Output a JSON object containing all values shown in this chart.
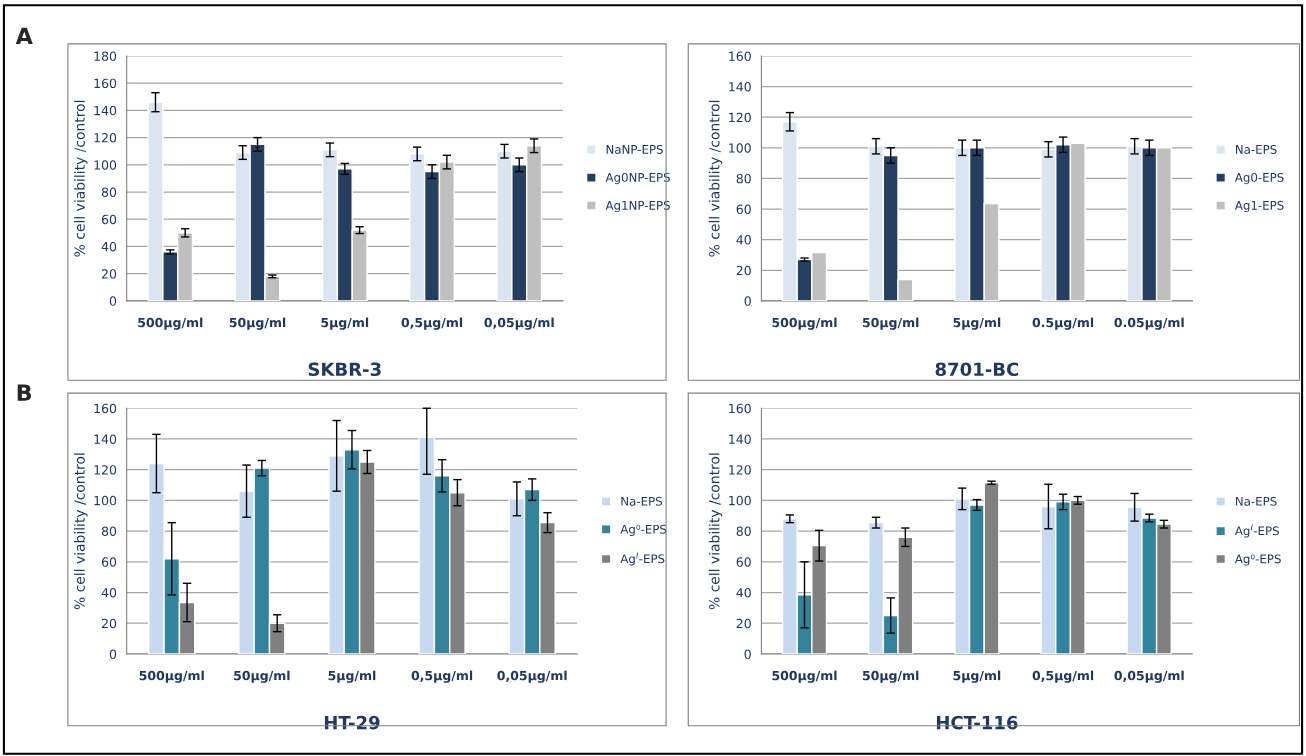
{
  "chart_data": [
    {
      "type": "bar",
      "title": "SKBR-3",
      "ylabel": "% cell viability /control",
      "annotations": [
        "A"
      ],
      "categories": [
        "500µg/ml",
        "50µg/ml",
        "5µg/ml",
        "0,5µg/ml",
        "0,05µg/ml"
      ],
      "ylim": [
        0,
        180
      ],
      "yticks": [
        0,
        20,
        40,
        60,
        80,
        100,
        120,
        140,
        160,
        180
      ],
      "grid": "y",
      "legend": "right",
      "series": [
        {
          "name": "NaNP-EPS",
          "color": "#dbe5f1",
          "values": [
            146,
            109,
            111,
            108,
            110
          ],
          "errors": [
            7,
            5,
            5,
            5,
            5
          ]
        },
        {
          "name": "Ag0NP-EPS",
          "color": "#243f60",
          "values": [
            36,
            115,
            97,
            95,
            100
          ],
          "errors": [
            1.5,
            5,
            4,
            5,
            5
          ]
        },
        {
          "name": "Ag1NP-EPS",
          "color": "#bfbfbf",
          "values": [
            50,
            18,
            52,
            102,
            114
          ],
          "errors": [
            3,
            1,
            2.5,
            5,
            5
          ]
        }
      ]
    },
    {
      "type": "bar",
      "title": "8701-BC",
      "ylabel": "% cell viability /control",
      "categories": [
        "500µg/ml",
        "50µg/ml",
        "5µg/ml",
        "0.5µg/ml",
        "0.05µg/ml"
      ],
      "ylim": [
        0,
        160
      ],
      "yticks": [
        0,
        20,
        40,
        60,
        80,
        100,
        120,
        140,
        160
      ],
      "grid": "y",
      "legend": "right",
      "series": [
        {
          "name": "Na-EPS",
          "color": "#dbe5f1",
          "values": [
            117,
            101,
            100,
            99,
            101
          ],
          "errors": [
            6,
            5,
            5,
            5,
            5
          ]
        },
        {
          "name": "Ag0-EPS",
          "color": "#243f60",
          "values": [
            27,
            95,
            100,
            102,
            100
          ],
          "errors": [
            1,
            5,
            5,
            5,
            5
          ]
        },
        {
          "name": "Ag1-EPS",
          "color": "#bfbfbf",
          "values": [
            31.5,
            14,
            63.5,
            103,
            100
          ]
        }
      ]
    },
    {
      "type": "bar",
      "title": "HT-29",
      "ylabel": "% cell viability /control",
      "annotations": [
        "B"
      ],
      "categories": [
        "500µg/ml",
        "50µg/ml",
        "5µg/ml",
        "0,5µg/ml",
        "0,05µg/ml"
      ],
      "ylim": [
        0,
        160
      ],
      "yticks": [
        0,
        20,
        40,
        60,
        80,
        100,
        120,
        140,
        160
      ],
      "grid": "y",
      "legend": "right",
      "series": [
        {
          "name": "Na-EPS",
          "color": "#c6d9f1",
          "values": [
            124,
            106,
            129,
            141,
            101
          ],
          "errors": [
            19,
            17,
            23,
            [
              117,
              160
            ],
            11
          ]
        },
        {
          "name": "Ag⁰-EPS",
          "color": "#31849b",
          "values": [
            62,
            121,
            133,
            116,
            107
          ],
          "errors": [
            23.5,
            5,
            12.5,
            10.5,
            7
          ]
        },
        {
          "name": "Ag$^{I}$-EPS",
          "color": "#808080",
          "values": [
            33.5,
            20,
            125,
            105,
            85.5
          ],
          "errors": [
            12.5,
            5.5,
            7.5,
            8.5,
            6.5
          ]
        }
      ]
    },
    {
      "type": "bar",
      "title": "HCT-116",
      "ylabel": "% cell viability /control",
      "categories": [
        "500µg/ml",
        "50µg/ml",
        "5µg/ml",
        "0,5µg/ml",
        "0,05µg/ml"
      ],
      "ylim": [
        0,
        160
      ],
      "yticks": [
        0,
        20,
        40,
        60,
        80,
        100,
        120,
        140,
        160
      ],
      "grid": "y",
      "legend": "right",
      "series": [
        {
          "name": "Na-EPS",
          "color": "#c6d9f1",
          "values": [
            88,
            85.5,
            101,
            96,
            95.5
          ],
          "errors": [
            2.5,
            3.5,
            7,
            14.5,
            9
          ]
        },
        {
          "name": "Ag$^{I}$-EPS",
          "color": "#31849b",
          "values": [
            38.5,
            25,
            97,
            99,
            88.5
          ],
          "errors": [
            21.5,
            11.5,
            3.5,
            5,
            2.5
          ]
        },
        {
          "name": "Ag⁰-EPS",
          "color": "#808080",
          "values": [
            70.5,
            76,
            111.5,
            100,
            84.5
          ],
          "errors": [
            10,
            6,
            1,
            2.5,
            2.5
          ]
        }
      ]
    }
  ]
}
